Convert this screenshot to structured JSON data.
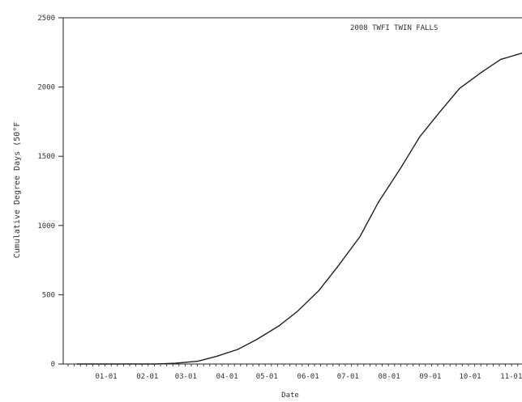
{
  "chart_data": {
    "type": "line",
    "title": "2008 TWFI TWIN FALLS",
    "xlabel": "Date",
    "ylabel": "Cumulative Degree Days (50°F",
    "x_tick_labels": [
      "01-01",
      "02-01",
      "03-01",
      "04-01",
      "05-01",
      "06-01",
      "07-01",
      "08-01",
      "09-01",
      "10-01",
      "11-01"
    ],
    "y_ticks": [
      0,
      500,
      1000,
      1500,
      2000,
      2500
    ],
    "ylim": [
      0,
      2500
    ],
    "grid": false,
    "legend": "none",
    "line_color": "#222222",
    "series": [
      {
        "x": [
          "2008-01-01",
          "2008-02-01",
          "2008-03-01",
          "2008-03-15",
          "2008-04-01",
          "2008-04-15",
          "2008-05-01",
          "2008-05-15",
          "2008-06-01",
          "2008-06-15",
          "2008-07-01",
          "2008-07-15",
          "2008-08-01",
          "2008-08-15",
          "2008-09-01",
          "2008-09-15",
          "2008-10-01",
          "2008-10-15",
          "2008-11-01",
          "2008-11-15",
          "2008-12-01"
        ],
        "values": [
          0,
          0,
          0,
          5,
          20,
          55,
          105,
          175,
          275,
          380,
          530,
          700,
          920,
          1170,
          1420,
          1640,
          1830,
          1990,
          2110,
          2200,
          2245
        ]
      }
    ]
  }
}
